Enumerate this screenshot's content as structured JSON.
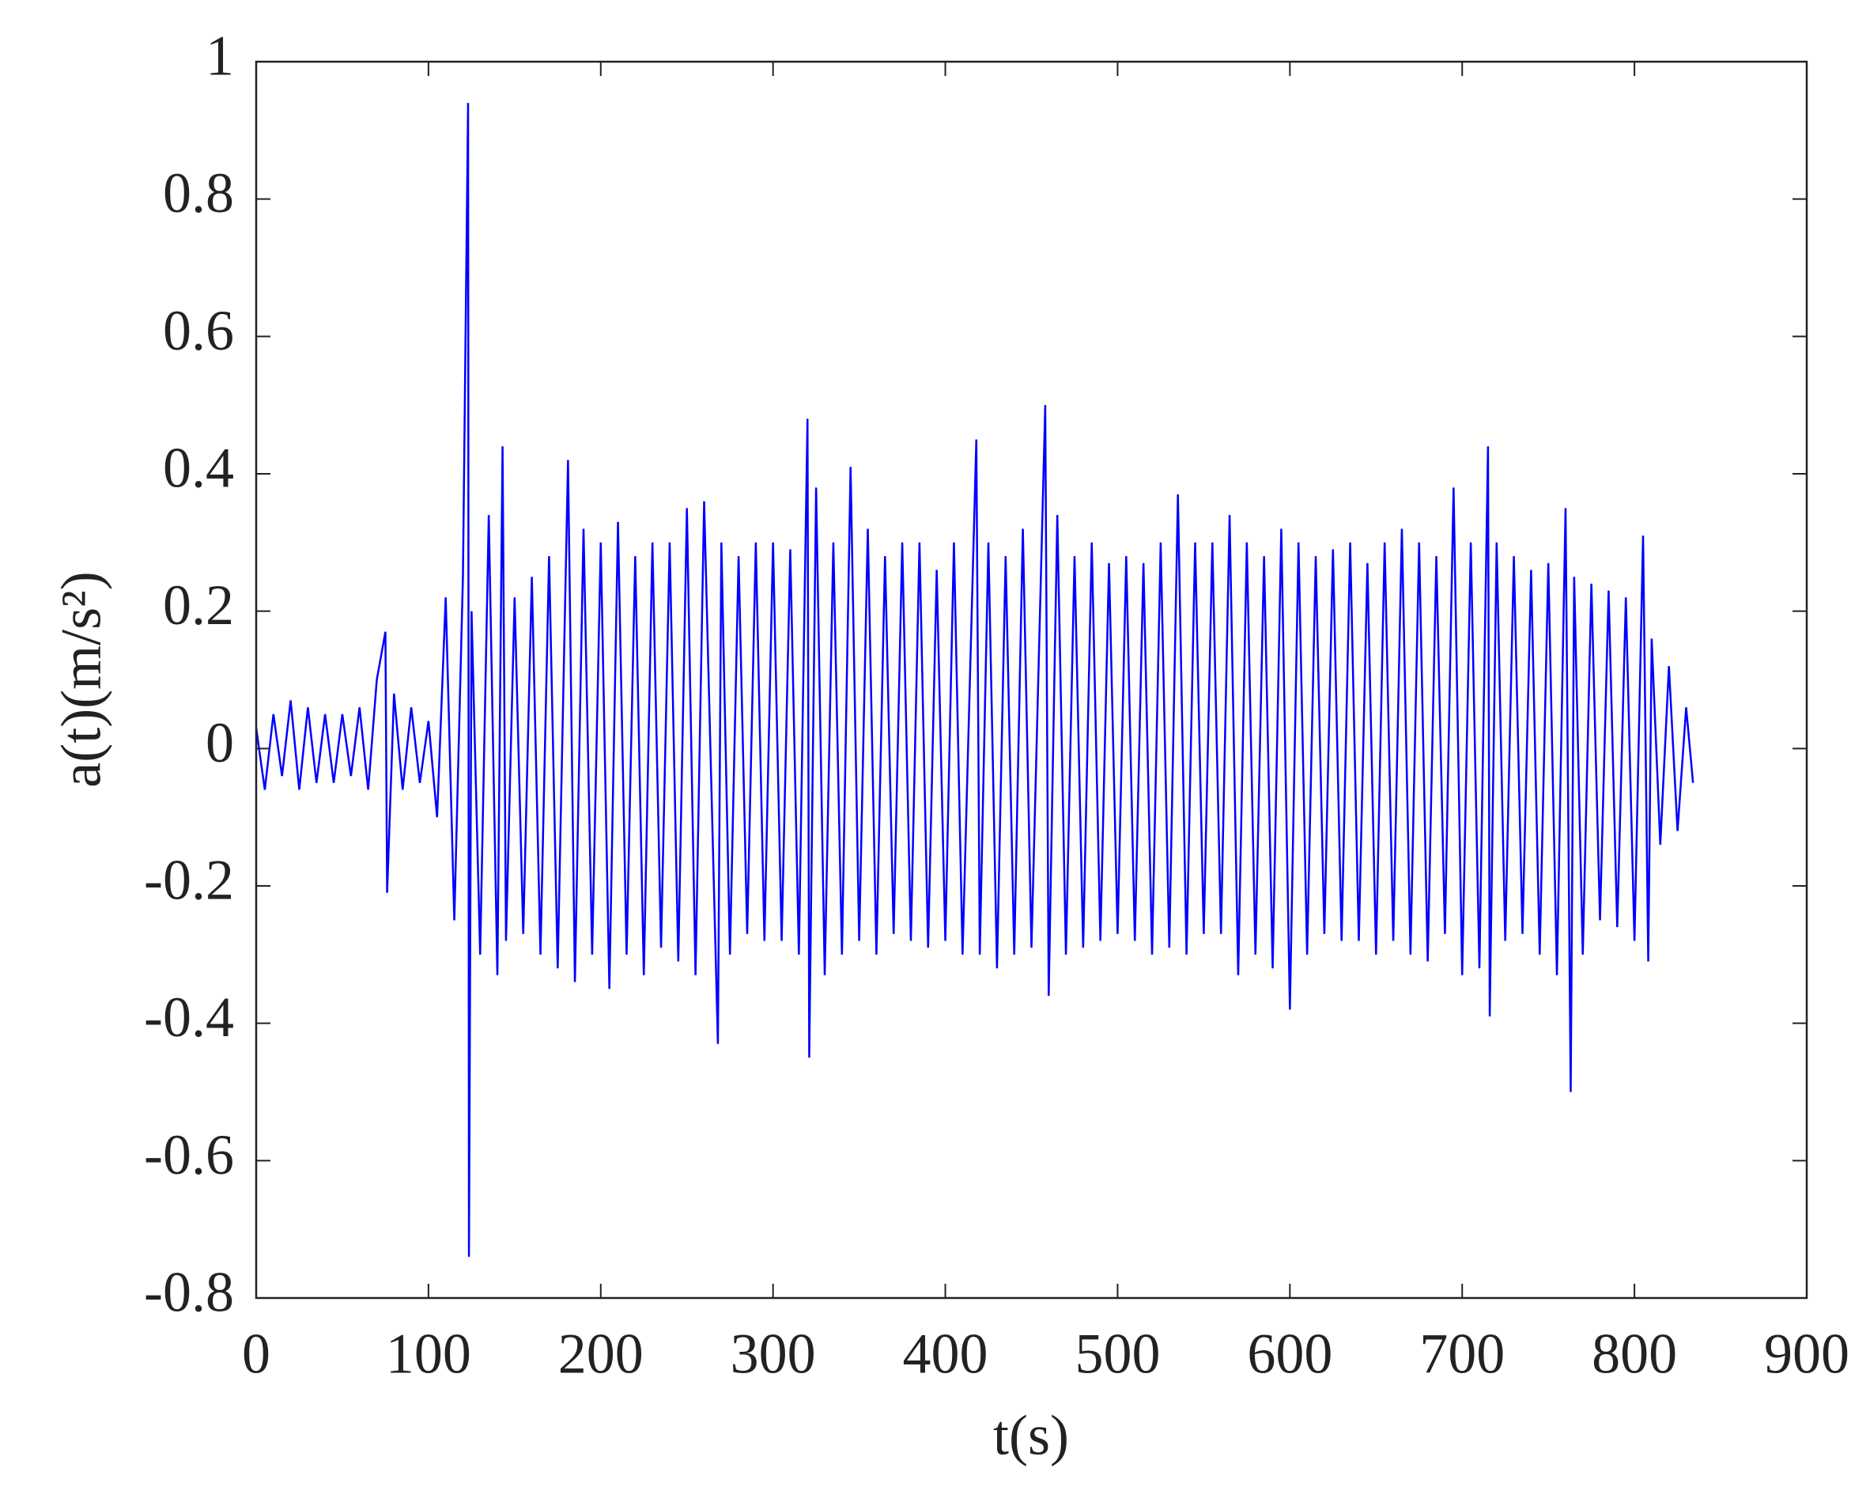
{
  "chart_data": {
    "type": "line",
    "xlabel": "t(s)",
    "ylabel": "a(t)(m/s²)",
    "xlim": [
      0,
      900
    ],
    "xticks": [
      0,
      100,
      200,
      300,
      400,
      500,
      600,
      700,
      800,
      900
    ],
    "ylim": [
      -0.8,
      1
    ],
    "yticks": [
      -0.8,
      -0.6,
      -0.4,
      -0.2,
      0,
      0.2,
      0.4,
      0.6,
      0.8,
      1
    ],
    "grid": false,
    "series": [
      {
        "color": "#0000ff",
        "x": [
          0,
          5,
          10,
          15,
          20,
          25,
          30,
          35,
          40,
          45,
          50,
          55,
          60,
          65,
          70,
          75,
          76,
          80,
          85,
          90,
          95,
          100,
          105,
          110,
          115,
          120,
          123,
          123.5,
          125,
          130,
          135,
          140,
          143,
          145,
          150,
          155,
          160,
          165,
          170,
          175,
          181,
          185,
          190,
          195,
          200,
          205,
          210,
          215,
          220,
          225,
          230,
          235,
          240,
          245,
          250,
          255,
          260,
          268,
          270,
          275,
          280,
          285,
          290,
          295,
          300,
          305,
          310,
          315,
          320,
          321,
          325,
          330,
          335,
          340,
          345,
          350,
          355,
          360,
          365,
          370,
          375,
          380,
          385,
          390,
          395,
          400,
          405,
          410,
          418,
          420,
          425,
          430,
          435,
          440,
          445,
          450,
          458,
          460,
          465,
          470,
          475,
          480,
          485,
          490,
          495,
          500,
          505,
          510,
          515,
          520,
          525,
          530,
          535,
          540,
          545,
          550,
          555,
          560,
          565,
          570,
          575,
          580,
          585,
          590,
          595,
          600,
          605,
          610,
          615,
          620,
          625,
          630,
          635,
          640,
          645,
          650,
          655,
          660,
          665,
          670,
          675,
          680,
          685,
          690,
          695,
          700,
          705,
          710,
          715,
          716,
          720,
          725,
          730,
          735,
          740,
          745,
          750,
          755,
          760,
          763,
          765,
          770,
          775,
          780,
          785,
          790,
          795,
          800,
          805,
          808,
          810,
          815,
          820,
          825,
          830,
          834
        ],
        "values": [
          0.03,
          -0.06,
          0.05,
          -0.04,
          0.07,
          -0.06,
          0.06,
          -0.05,
          0.05,
          -0.05,
          0.05,
          -0.04,
          0.06,
          -0.06,
          0.1,
          0.17,
          -0.21,
          0.08,
          -0.06,
          0.06,
          -0.05,
          0.04,
          -0.1,
          0.22,
          -0.25,
          0.25,
          0.94,
          -0.74,
          0.2,
          -0.3,
          0.34,
          -0.33,
          0.44,
          -0.28,
          0.22,
          -0.27,
          0.25,
          -0.3,
          0.28,
          -0.32,
          0.42,
          -0.34,
          0.32,
          -0.3,
          0.3,
          -0.35,
          0.33,
          -0.3,
          0.28,
          -0.33,
          0.3,
          -0.29,
          0.3,
          -0.31,
          0.35,
          -0.33,
          0.36,
          -0.43,
          0.3,
          -0.3,
          0.28,
          -0.27,
          0.3,
          -0.28,
          0.3,
          -0.28,
          0.29,
          -0.3,
          0.48,
          -0.45,
          0.38,
          -0.33,
          0.3,
          -0.3,
          0.41,
          -0.28,
          0.32,
          -0.3,
          0.28,
          -0.27,
          0.3,
          -0.28,
          0.3,
          -0.29,
          0.26,
          -0.28,
          0.3,
          -0.3,
          0.45,
          -0.3,
          0.3,
          -0.32,
          0.28,
          -0.3,
          0.32,
          -0.29,
          0.5,
          -0.36,
          0.34,
          -0.3,
          0.28,
          -0.29,
          0.3,
          -0.28,
          0.27,
          -0.27,
          0.28,
          -0.28,
          0.27,
          -0.3,
          0.3,
          -0.29,
          0.37,
          -0.3,
          0.3,
          -0.27,
          0.3,
          -0.27,
          0.34,
          -0.33,
          0.3,
          -0.3,
          0.28,
          -0.32,
          0.32,
          -0.38,
          0.3,
          -0.3,
          0.28,
          -0.27,
          0.29,
          -0.28,
          0.3,
          -0.28,
          0.27,
          -0.3,
          0.3,
          -0.28,
          0.32,
          -0.3,
          0.3,
          -0.31,
          0.28,
          -0.27,
          0.38,
          -0.33,
          0.3,
          -0.32,
          0.44,
          -0.39,
          0.3,
          -0.28,
          0.28,
          -0.27,
          0.26,
          -0.3,
          0.27,
          -0.33,
          0.35,
          -0.5,
          0.25,
          -0.3,
          0.24,
          -0.25,
          0.23,
          -0.26,
          0.22,
          -0.28,
          0.31,
          -0.31,
          0.16,
          -0.14,
          0.12,
          -0.12,
          0.06,
          -0.05
        ]
      }
    ]
  }
}
